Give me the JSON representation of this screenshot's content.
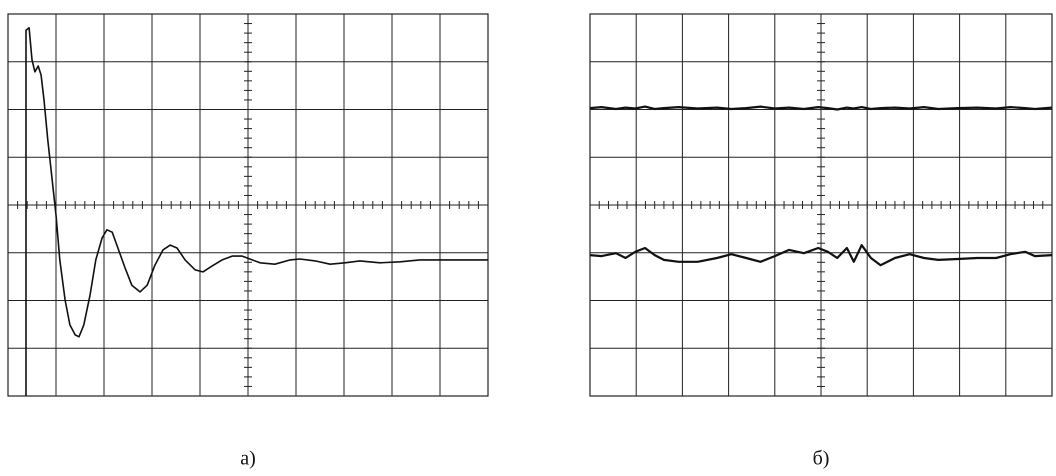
{
  "chart_data": [
    {
      "type": "line",
      "caption": "а)",
      "xlim": [
        0,
        10
      ],
      "ylim": [
        -4,
        4
      ],
      "xticks": [
        0,
        1,
        2,
        3,
        4,
        5,
        6,
        7,
        8,
        9,
        10
      ],
      "yticks": [
        -4,
        -3,
        -2,
        -1,
        0,
        1,
        2,
        3,
        4
      ],
      "grid": true,
      "x": [
        0.375,
        0.375,
        0.44,
        0.5,
        0.56,
        0.63,
        0.69,
        0.75,
        0.83,
        0.92,
        1.0,
        1.08,
        1.19,
        1.29,
        1.4,
        1.48,
        1.58,
        1.71,
        1.83,
        1.96,
        2.06,
        2.17,
        2.29,
        2.44,
        2.58,
        2.75,
        2.9,
        3.06,
        3.23,
        3.38,
        3.52,
        3.69,
        3.9,
        4.06,
        4.25,
        4.46,
        4.67,
        4.88,
        5.04,
        5.25,
        5.56,
        5.88,
        6.08,
        6.4,
        6.71,
        7.02,
        7.33,
        7.75,
        8.17,
        8.58,
        9.0,
        9.42,
        10
      ],
      "series": [
        {
          "color": "#111111",
          "values": [
            -4.0,
            3.66,
            3.71,
            3.04,
            2.79,
            2.91,
            2.72,
            2.2,
            1.36,
            0.52,
            -0.21,
            -1.15,
            -1.99,
            -2.51,
            -2.72,
            -2.76,
            -2.51,
            -1.88,
            -1.15,
            -0.69,
            -0.52,
            -0.57,
            -0.9,
            -1.32,
            -1.68,
            -1.82,
            -1.68,
            -1.26,
            -0.94,
            -0.84,
            -0.9,
            -1.15,
            -1.36,
            -1.4,
            -1.28,
            -1.15,
            -1.07,
            -1.07,
            -1.13,
            -1.21,
            -1.24,
            -1.15,
            -1.13,
            -1.17,
            -1.24,
            -1.21,
            -1.17,
            -1.21,
            -1.19,
            -1.15,
            -1.15,
            -1.15,
            -1.15
          ]
        }
      ]
    },
    {
      "type": "line",
      "caption": "б)",
      "xlim": [
        0,
        10
      ],
      "ylim": [
        -4,
        4
      ],
      "xticks": [
        0,
        1,
        2,
        3,
        4,
        5,
        6,
        7,
        8,
        9,
        10
      ],
      "yticks": [
        -4,
        -3,
        -2,
        -1,
        0,
        1,
        2,
        3,
        4
      ],
      "grid": true,
      "x": [
        0,
        0.25,
        0.56,
        0.77,
        0.98,
        1.19,
        1.4,
        1.6,
        1.92,
        2.33,
        2.75,
        3.06,
        3.38,
        3.69,
        4.0,
        4.31,
        4.63,
        4.94,
        5.15,
        5.35,
        5.56,
        5.71,
        5.88,
        6.08,
        6.29,
        6.6,
        6.92,
        7.23,
        7.54,
        7.96,
        8.38,
        8.79,
        9.1,
        9.42,
        9.63,
        10
      ],
      "series": [
        {
          "color": "#111111",
          "values": [
            2.03,
            2.05,
            2.01,
            2.04,
            2.02,
            2.06,
            2.01,
            2.03,
            2.05,
            2.02,
            2.04,
            2.01,
            2.03,
            2.06,
            2.02,
            2.04,
            2.01,
            2.05,
            2.03,
            2.0,
            2.04,
            2.02,
            2.05,
            2.01,
            2.03,
            2.04,
            2.02,
            2.05,
            2.01,
            2.03,
            2.04,
            2.02,
            2.05,
            2.03,
            2.01,
            2.04
          ]
        },
        {
          "color": "#111111",
          "values": [
            -1.05,
            -1.07,
            -1.01,
            -1.11,
            -0.98,
            -0.9,
            -1.05,
            -1.15,
            -1.19,
            -1.19,
            -1.11,
            -1.03,
            -1.11,
            -1.19,
            -1.07,
            -0.94,
            -1.01,
            -0.9,
            -0.98,
            -1.11,
            -0.9,
            -1.19,
            -0.84,
            -1.11,
            -1.26,
            -1.11,
            -1.03,
            -1.11,
            -1.15,
            -1.13,
            -1.11,
            -1.11,
            -1.03,
            -0.98,
            -1.07,
            -1.05
          ]
        }
      ]
    }
  ]
}
